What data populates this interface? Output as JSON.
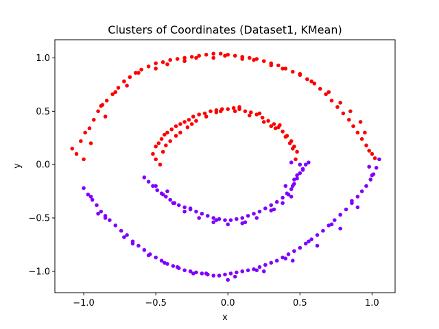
{
  "chart_data": {
    "type": "scatter",
    "title": "Clusters of Coordinates (Dataset1, KMean)",
    "xlabel": "x",
    "ylabel": "y",
    "xlim": [
      -1.2,
      1.16
    ],
    "ylim": [
      -1.2,
      1.17
    ],
    "xticks": [
      -1.0,
      -0.5,
      0.0,
      0.5,
      1.0
    ],
    "xtick_labels": [
      "−1.0",
      "−0.5",
      "0.0",
      "0.5",
      "1.0"
    ],
    "yticks": [
      -1.0,
      -0.5,
      0.0,
      0.5,
      1.0
    ],
    "ytick_labels": [
      "−1.0",
      "−0.5",
      "0.0",
      "0.5",
      "1.0"
    ],
    "grid": false,
    "legend": "none",
    "series": [
      {
        "color": "#ff0000",
        "x": [
          -1.08,
          -1.05,
          -1.02,
          -0.99,
          -0.96,
          -0.93,
          -0.9,
          -0.87,
          -0.84,
          -0.8,
          -0.76,
          -0.72,
          -0.68,
          -0.64,
          -0.6,
          -0.55,
          -0.5,
          -0.45,
          -0.4,
          -0.35,
          -0.3,
          -0.25,
          -0.2,
          -0.15,
          -0.1,
          -0.05,
          0.0,
          0.05,
          0.1,
          0.15,
          0.2,
          0.25,
          0.3,
          0.35,
          0.4,
          0.45,
          0.5,
          0.55,
          0.6,
          0.64,
          0.68,
          0.72,
          0.76,
          0.8,
          0.84,
          0.87,
          0.9,
          0.93,
          0.96,
          0.98,
          1.0,
          1.02,
          -1.0,
          -0.95,
          -0.85,
          -0.7,
          -0.5,
          -0.3,
          -0.1,
          0.1,
          0.3,
          0.5,
          0.7,
          0.85,
          0.95,
          -0.88,
          -0.78,
          -0.62,
          -0.42,
          -0.22,
          -0.02,
          0.18,
          0.38,
          0.58,
          0.78,
          0.92,
          -0.52,
          -0.5,
          -0.48,
          -0.46,
          -0.44,
          -0.42,
          -0.39,
          -0.36,
          -0.33,
          -0.3,
          -0.27,
          -0.24,
          -0.2,
          -0.16,
          -0.12,
          -0.08,
          -0.04,
          0.0,
          0.04,
          0.08,
          0.12,
          0.16,
          0.2,
          0.24,
          0.28,
          0.32,
          0.35,
          0.38,
          0.41,
          0.44,
          0.46,
          0.48,
          -0.5,
          -0.45,
          -0.4,
          -0.33,
          -0.25,
          -0.15,
          -0.05,
          0.05,
          0.15,
          0.25,
          0.33,
          0.4,
          0.45,
          -0.47,
          -0.36,
          -0.22,
          -0.08,
          0.08,
          0.22,
          0.36,
          0.47,
          -0.43,
          -0.28,
          0.3,
          0.43
        ],
        "y": [
          0.15,
          0.1,
          0.22,
          0.3,
          0.34,
          0.42,
          0.5,
          0.56,
          0.6,
          0.66,
          0.72,
          0.78,
          0.82,
          0.86,
          0.89,
          0.92,
          0.95,
          0.96,
          0.98,
          0.99,
          1.0,
          1.01,
          1.02,
          1.03,
          1.04,
          1.04,
          1.03,
          1.02,
          1.01,
          1.0,
          0.99,
          0.97,
          0.95,
          0.93,
          0.9,
          0.87,
          0.84,
          0.8,
          0.76,
          0.71,
          0.66,
          0.6,
          0.54,
          0.48,
          0.42,
          0.36,
          0.3,
          0.24,
          0.18,
          0.13,
          0.1,
          0.06,
          0.05,
          0.2,
          0.45,
          0.74,
          0.9,
          0.97,
          1.0,
          0.99,
          0.93,
          0.85,
          0.68,
          0.5,
          0.3,
          0.55,
          0.68,
          0.86,
          0.94,
          1.0,
          1.02,
          0.98,
          0.9,
          0.78,
          0.58,
          0.4,
          0.1,
          0.17,
          0.2,
          0.24,
          0.28,
          0.3,
          0.33,
          0.36,
          0.38,
          0.4,
          0.42,
          0.45,
          0.47,
          0.48,
          0.5,
          0.51,
          0.52,
          0.52,
          0.53,
          0.52,
          0.5,
          0.49,
          0.47,
          0.44,
          0.41,
          0.38,
          0.35,
          0.31,
          0.27,
          0.22,
          0.17,
          0.12,
          0.05,
          0.12,
          0.22,
          0.3,
          0.38,
          0.45,
          0.5,
          0.5,
          0.46,
          0.4,
          0.34,
          0.26,
          0.15,
          0.0,
          0.27,
          0.41,
          0.49,
          0.54,
          0.48,
          0.37,
          0.05,
          0.18,
          0.35,
          0.36,
          0.2
        ]
      },
      {
        "color": "#8000ff",
        "x": [
          -1.0,
          -0.97,
          -0.94,
          -0.91,
          -0.88,
          -0.85,
          -0.82,
          -0.78,
          -0.74,
          -0.7,
          -0.66,
          -0.62,
          -0.58,
          -0.54,
          -0.5,
          -0.46,
          -0.42,
          -0.38,
          -0.34,
          -0.3,
          -0.26,
          -0.22,
          -0.18,
          -0.14,
          -0.1,
          -0.06,
          -0.02,
          0.02,
          0.06,
          0.1,
          0.14,
          0.18,
          0.22,
          0.26,
          0.3,
          0.34,
          0.38,
          0.42,
          0.46,
          0.5,
          0.54,
          0.58,
          0.62,
          0.66,
          0.7,
          0.74,
          0.78,
          0.82,
          0.86,
          0.9,
          0.93,
          0.96,
          0.99,
          1.01,
          1.03,
          1.05,
          -0.95,
          -0.85,
          -0.72,
          -0.55,
          -0.35,
          -0.15,
          0.05,
          0.25,
          0.45,
          0.62,
          0.78,
          0.9,
          1.0,
          -0.9,
          -0.66,
          -0.44,
          -0.24,
          0.0,
          0.2,
          0.4,
          0.56,
          0.72,
          0.86,
          0.98,
          -0.58,
          -0.55,
          -0.52,
          -0.49,
          -0.46,
          -0.43,
          -0.4,
          -0.37,
          -0.34,
          -0.3,
          -0.26,
          -0.22,
          -0.18,
          -0.14,
          -0.1,
          -0.06,
          -0.02,
          0.02,
          0.06,
          0.1,
          0.14,
          0.18,
          0.22,
          0.26,
          0.3,
          0.34,
          0.38,
          0.41,
          0.44,
          0.46,
          0.48,
          0.5,
          0.52,
          0.54,
          0.56,
          -0.5,
          -0.45,
          -0.38,
          -0.3,
          -0.2,
          -0.1,
          0.0,
          0.1,
          0.2,
          0.3,
          0.38,
          0.42,
          0.45,
          0.48,
          0.5,
          -0.42,
          -0.26,
          -0.08,
          0.12,
          0.32,
          0.44,
          0.52,
          0.44,
          0.4,
          0.46
        ],
        "y": [
          -0.22,
          -0.28,
          -0.33,
          -0.38,
          -0.44,
          -0.48,
          -0.52,
          -0.57,
          -0.62,
          -0.66,
          -0.72,
          -0.76,
          -0.8,
          -0.84,
          -0.87,
          -0.9,
          -0.93,
          -0.95,
          -0.97,
          -0.99,
          -1.0,
          -1.01,
          -1.02,
          -1.03,
          -1.04,
          -1.04,
          -1.03,
          -1.02,
          -1.01,
          -1.0,
          -0.99,
          -0.98,
          -0.96,
          -0.94,
          -0.92,
          -0.9,
          -0.87,
          -0.84,
          -0.81,
          -0.78,
          -0.74,
          -0.7,
          -0.66,
          -0.62,
          -0.57,
          -0.52,
          -0.47,
          -0.42,
          -0.36,
          -0.3,
          -0.25,
          -0.2,
          -0.14,
          -0.09,
          -0.03,
          0.05,
          -0.3,
          -0.5,
          -0.68,
          -0.85,
          -0.96,
          -1.02,
          -1.05,
          -1.0,
          -0.9,
          -0.76,
          -0.6,
          -0.4,
          -0.1,
          -0.46,
          -0.74,
          -0.92,
          -1.02,
          -1.08,
          -0.99,
          -0.88,
          -0.72,
          -0.56,
          -0.34,
          -0.02,
          -0.12,
          -0.16,
          -0.2,
          -0.24,
          -0.27,
          -0.3,
          -0.33,
          -0.36,
          -0.38,
          -0.4,
          -0.42,
          -0.44,
          -0.46,
          -0.48,
          -0.5,
          -0.51,
          -0.52,
          -0.52,
          -0.51,
          -0.5,
          -0.48,
          -0.46,
          -0.44,
          -0.41,
          -0.38,
          -0.35,
          -0.31,
          -0.27,
          -0.23,
          -0.18,
          -0.13,
          -0.08,
          -0.04,
          0.0,
          0.02,
          -0.2,
          -0.28,
          -0.36,
          -0.44,
          -0.5,
          -0.54,
          -0.56,
          -0.55,
          -0.5,
          -0.43,
          -0.36,
          -0.28,
          -0.2,
          -0.1,
          0.0,
          -0.25,
          -0.41,
          -0.52,
          -0.54,
          -0.42,
          -0.3,
          -0.05,
          0.02,
          -0.2,
          -0.14
        ]
      }
    ]
  }
}
